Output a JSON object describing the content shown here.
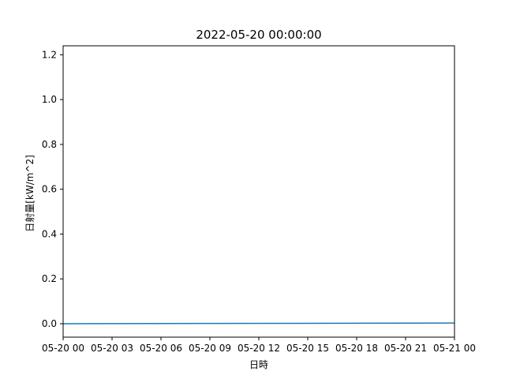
{
  "chart_data": {
    "type": "line",
    "title": "2022-05-20 00:00:00",
    "xlabel": "日時",
    "ylabel": "日射量[kW/m^2]",
    "x_ticks": [
      "05-20 00",
      "05-20 03",
      "05-20 06",
      "05-20 09",
      "05-20 12",
      "05-20 15",
      "05-20 18",
      "05-20 21",
      "05-21 00"
    ],
    "y_ticks": [
      "0.0",
      "0.2",
      "0.4",
      "0.6",
      "0.8",
      "1.0",
      "1.2"
    ],
    "ylim": [
      -0.06,
      1.24
    ],
    "grid": false,
    "series": [
      {
        "color": "#1f77b4",
        "x_hours": [
          0,
          24
        ],
        "values": [
          0.0,
          0.003
        ]
      }
    ]
  }
}
